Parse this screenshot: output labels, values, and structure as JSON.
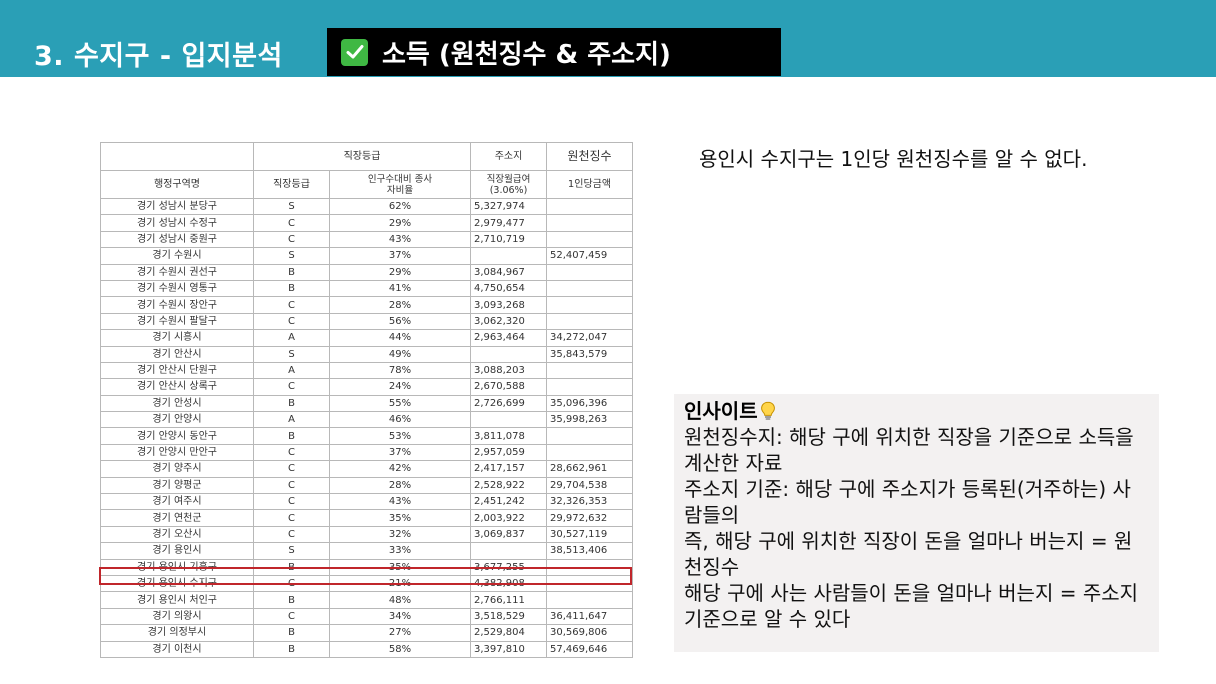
{
  "header": {
    "title": "3. 수지구 - 입지분석",
    "subtitle": "소득 (원천징수 & 주소지)",
    "check_icon": "check-mark-icon",
    "colors": {
      "bar": "#2a9fb6",
      "subtitle_bg": "#000000",
      "check": "#3fb843"
    }
  },
  "table": {
    "group_headers": {
      "workplace": "직장등급",
      "address": "주소지",
      "withholding": "원천징수"
    },
    "columns": {
      "region": "행정구역명",
      "grade": "직장등급",
      "ratio": "인구수대비 종사자비율",
      "wage": "직장월급여 (3.06%)",
      "per_capita": "1인당금액"
    },
    "rows": [
      {
        "region": "경기 성남시 분당구",
        "grade": "S",
        "ratio": "62%",
        "wage": "5,327,974",
        "tax": ""
      },
      {
        "region": "경기 성남시 수정구",
        "grade": "C",
        "ratio": "29%",
        "wage": "2,979,477",
        "tax": ""
      },
      {
        "region": "경기 성남시 중원구",
        "grade": "C",
        "ratio": "43%",
        "wage": "2,710,719",
        "tax": ""
      },
      {
        "region": "경기 수원시",
        "grade": "S",
        "ratio": "37%",
        "wage": "",
        "tax": "52,407,459"
      },
      {
        "region": "경기 수원시 권선구",
        "grade": "B",
        "ratio": "29%",
        "wage": "3,084,967",
        "tax": ""
      },
      {
        "region": "경기 수원시 영통구",
        "grade": "B",
        "ratio": "41%",
        "wage": "4,750,654",
        "tax": ""
      },
      {
        "region": "경기 수원시 장안구",
        "grade": "C",
        "ratio": "28%",
        "wage": "3,093,268",
        "tax": ""
      },
      {
        "region": "경기 수원시 팔달구",
        "grade": "C",
        "ratio": "56%",
        "wage": "3,062,320",
        "tax": ""
      },
      {
        "region": "경기 시흥시",
        "grade": "A",
        "ratio": "44%",
        "wage": "2,963,464",
        "tax": "34,272,047"
      },
      {
        "region": "경기 안산시",
        "grade": "S",
        "ratio": "49%",
        "wage": "",
        "tax": "35,843,579"
      },
      {
        "region": "경기 안산시 단원구",
        "grade": "A",
        "ratio": "78%",
        "wage": "3,088,203",
        "tax": ""
      },
      {
        "region": "경기 안산시 상록구",
        "grade": "C",
        "ratio": "24%",
        "wage": "2,670,588",
        "tax": ""
      },
      {
        "region": "경기 안성시",
        "grade": "B",
        "ratio": "55%",
        "wage": "2,726,699",
        "tax": "35,096,396"
      },
      {
        "region": "경기 안양시",
        "grade": "A",
        "ratio": "46%",
        "wage": "",
        "tax": "35,998,263"
      },
      {
        "region": "경기 안양시 동안구",
        "grade": "B",
        "ratio": "53%",
        "wage": "3,811,078",
        "tax": ""
      },
      {
        "region": "경기 안양시 만안구",
        "grade": "C",
        "ratio": "37%",
        "wage": "2,957,059",
        "tax": ""
      },
      {
        "region": "경기 양주시",
        "grade": "C",
        "ratio": "42%",
        "wage": "2,417,157",
        "tax": "28,662,961"
      },
      {
        "region": "경기 양평군",
        "grade": "C",
        "ratio": "28%",
        "wage": "2,528,922",
        "tax": "29,704,538"
      },
      {
        "region": "경기 여주시",
        "grade": "C",
        "ratio": "43%",
        "wage": "2,451,242",
        "tax": "32,326,353"
      },
      {
        "region": "경기 연천군",
        "grade": "C",
        "ratio": "35%",
        "wage": "2,003,922",
        "tax": "29,972,632"
      },
      {
        "region": "경기 오산시",
        "grade": "C",
        "ratio": "32%",
        "wage": "3,069,837",
        "tax": "30,527,119"
      },
      {
        "region": "경기 용인시",
        "grade": "S",
        "ratio": "33%",
        "wage": "",
        "tax": "38,513,406"
      },
      {
        "region": "경기 용인시 기흥구",
        "grade": "B",
        "ratio": "35%",
        "wage": "3,677,255",
        "tax": ""
      },
      {
        "region": "경기 용인시 수지구",
        "grade": "C",
        "ratio": "21%",
        "wage": "4,382,908",
        "tax": ""
      },
      {
        "region": "경기 용인시 처인구",
        "grade": "B",
        "ratio": "48%",
        "wage": "2,766,111",
        "tax": ""
      },
      {
        "region": "경기 의왕시",
        "grade": "C",
        "ratio": "34%",
        "wage": "3,518,529",
        "tax": "36,411,647"
      },
      {
        "region": "경기 의정부시",
        "grade": "B",
        "ratio": "27%",
        "wage": "2,529,804",
        "tax": "30,569,806"
      },
      {
        "region": "경기 이천시",
        "grade": "B",
        "ratio": "58%",
        "wage": "3,397,810",
        "tax": "57,469,646"
      }
    ],
    "highlight_color": "#c0262b"
  },
  "note": "용인시 수지구는 1인당 원천징수를 알 수 없다.",
  "insight": {
    "title": "인사이트",
    "icon": "light-bulb-icon",
    "bg": "#f3f1f1",
    "lines": [
      "원천징수지: 해당 구에 위치한 직장을 기준으로 소득을 계산한 자료",
      "주소지 기준: 해당 구에 주소지가 등록된(거주하는) 사람들의",
      "즉, 해당 구에 위치한 직장이 돈을 얼마나 버는지 = 원천징수",
      "해당 구에 사는 사람들이 돈을 얼마나 버는지 = 주소지 기준으로 알 수 있다"
    ]
  }
}
